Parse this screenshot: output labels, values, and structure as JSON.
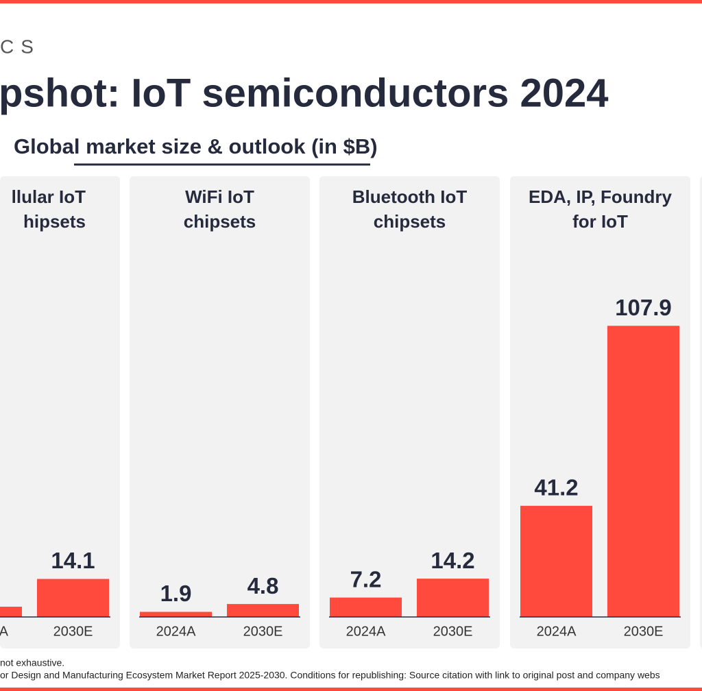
{
  "logo": "CS",
  "title": "pshot: IoT semiconductors 2024",
  "subtitle": "Global market size & outlook (in $B)",
  "footnotes": [
    "not exhaustive.",
    "or Design and Manufacturing Ecosystem Market Report 2025-2030. Conditions for republishing: Source citation with link to original post and company webs"
  ],
  "chart_data": [
    {
      "type": "bar",
      "title": [
        "llular IoT",
        "hipsets"
      ],
      "categories": [
        "A",
        "2030E"
      ],
      "values": [
        3.8,
        14.1
      ],
      "value_labels": [
        null,
        "14.1"
      ],
      "color": "#ff4a3d",
      "ylim": [
        0,
        110
      ]
    },
    {
      "type": "bar",
      "title": [
        "WiFi IoT",
        "chipsets"
      ],
      "categories": [
        "2024A",
        "2030E"
      ],
      "values": [
        1.9,
        4.8
      ],
      "color": "#ff4a3d",
      "ylim": [
        0,
        110
      ]
    },
    {
      "type": "bar",
      "title": [
        "Bluetooth IoT",
        "chipsets"
      ],
      "categories": [
        "2024A",
        "2030E"
      ],
      "values": [
        7.2,
        14.2
      ],
      "color": "#ff4a3d",
      "ylim": [
        0,
        110
      ]
    },
    {
      "type": "bar",
      "title": [
        "EDA, IP, Foundry",
        "for IoT"
      ],
      "categories": [
        "2024A",
        "2030E"
      ],
      "values": [
        41.2,
        107.9
      ],
      "color": "#ff4a3d",
      "ylim": [
        0,
        110
      ]
    }
  ]
}
